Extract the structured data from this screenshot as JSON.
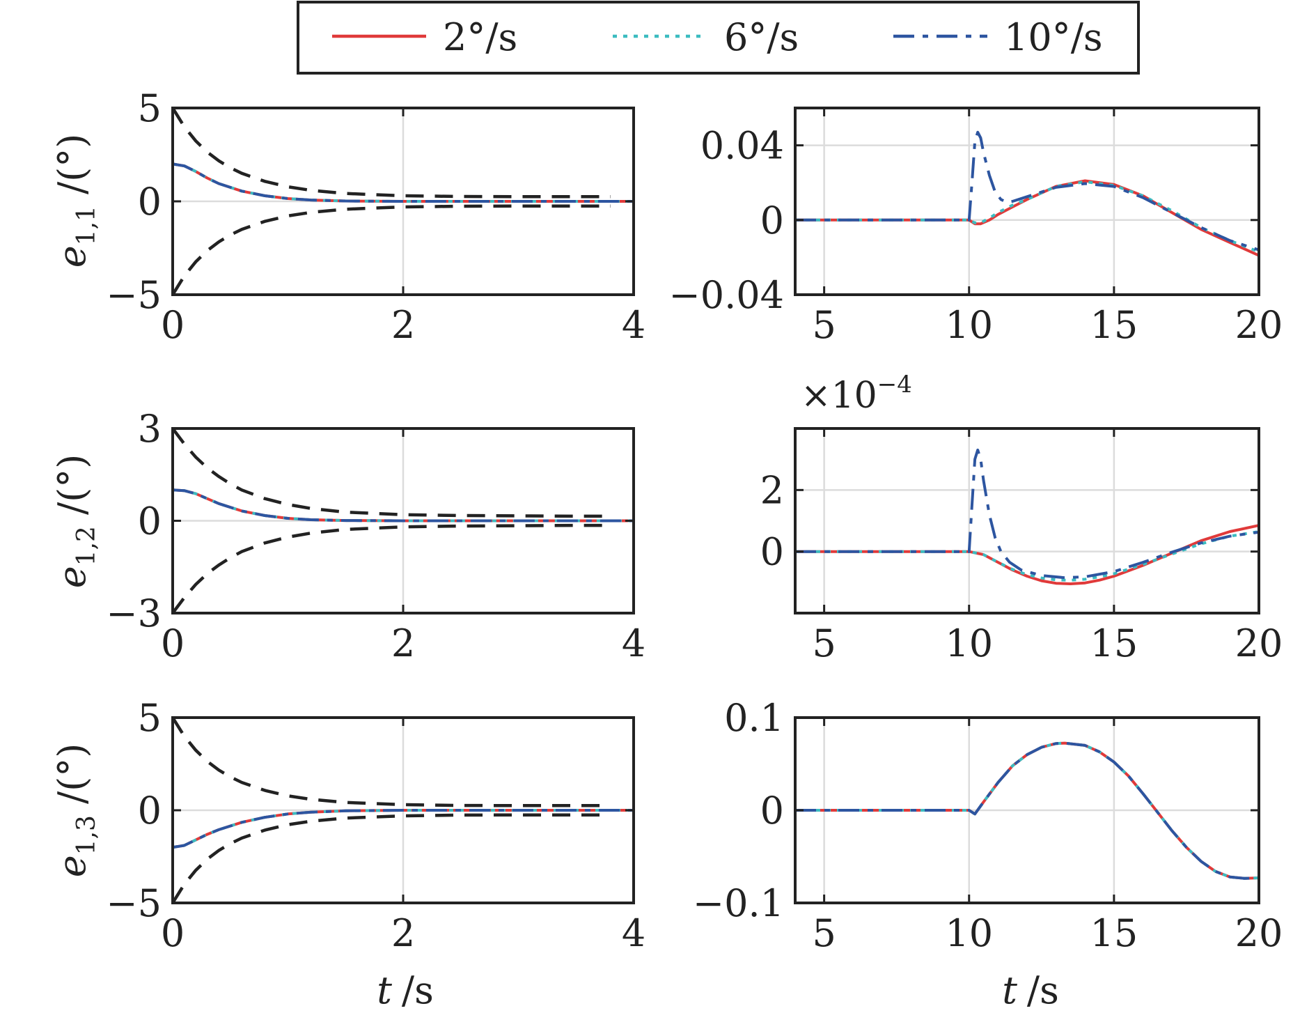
{
  "legend": {
    "placement": "top-center",
    "entries": [
      {
        "label": "2°/s",
        "color": "#e03a3a",
        "style": "solid"
      },
      {
        "label": "6°/s",
        "color": "#3cbcc0",
        "style": "dotted"
      },
      {
        "label": "10°/s",
        "color": "#2d55a0",
        "style": "dashdot"
      }
    ]
  },
  "colors": {
    "bound": "#222222",
    "grid": "#dcdcdc",
    "axes": "#222222"
  },
  "labels": {
    "ylabels": [
      {
        "base": "e",
        "sub": "1,1",
        "unit": "/(°)"
      },
      {
        "base": "e",
        "sub": "1,2",
        "unit": "/(°)"
      },
      {
        "base": "e",
        "sub": "1,3",
        "unit": "/(°)"
      }
    ],
    "xlabels": [
      {
        "var": "t",
        "unit": "/s"
      },
      {
        "var": "t",
        "unit": "/s"
      }
    ],
    "multiplier": {
      "base": "×10",
      "exp": "−4"
    }
  },
  "chart_data": [
    {
      "type": "line",
      "row": 1,
      "col": 1,
      "xlim": [
        0,
        4
      ],
      "ylim": [
        -5,
        5
      ],
      "xticks": [
        0,
        2,
        4
      ],
      "xtick_labels": [
        "0",
        "2",
        "4"
      ],
      "yticks": [
        -5,
        0,
        5
      ],
      "ytick_labels": [
        "−5",
        "0",
        "5"
      ],
      "grid": true,
      "series": [
        {
          "name": "2°/s",
          "x": [
            0,
            0.1,
            0.2,
            0.3,
            0.4,
            0.6,
            0.8,
            1.0,
            1.2,
            1.5,
            2.0,
            3.0,
            4.0
          ],
          "y": [
            2.0,
            1.9,
            1.6,
            1.25,
            0.95,
            0.55,
            0.3,
            0.15,
            0.07,
            0.02,
            0,
            0,
            0
          ]
        },
        {
          "name": "6°/s",
          "x": [
            0,
            0.1,
            0.2,
            0.3,
            0.4,
            0.6,
            0.8,
            1.0,
            1.2,
            1.5,
            2.0,
            3.0,
            4.0
          ],
          "y": [
            2.0,
            1.9,
            1.6,
            1.25,
            0.95,
            0.55,
            0.3,
            0.15,
            0.07,
            0.02,
            0,
            0,
            0
          ]
        },
        {
          "name": "10°/s",
          "x": [
            0,
            0.1,
            0.2,
            0.3,
            0.4,
            0.6,
            0.8,
            1.0,
            1.2,
            1.5,
            2.0,
            3.0,
            4.0
          ],
          "y": [
            2.0,
            1.9,
            1.6,
            1.25,
            0.95,
            0.55,
            0.3,
            0.15,
            0.07,
            0.02,
            0,
            0,
            0
          ]
        }
      ],
      "bounds": {
        "x": [
          0,
          0.1,
          0.2,
          0.3,
          0.4,
          0.5,
          0.6,
          0.8,
          1.0,
          1.2,
          1.5,
          2.0,
          2.5,
          3.0,
          3.5,
          3.8
        ],
        "upper": [
          5.0,
          4.0,
          3.24,
          2.64,
          2.17,
          1.8,
          1.5,
          1.07,
          0.78,
          0.59,
          0.42,
          0.3,
          0.26,
          0.25,
          0.25,
          0.25
        ]
      }
    },
    {
      "type": "line",
      "row": 1,
      "col": 2,
      "xlim": [
        4,
        20
      ],
      "ylim": [
        -0.04,
        0.06
      ],
      "xticks": [
        5,
        10,
        15,
        20
      ],
      "xtick_labels": [
        "5",
        "10",
        "15",
        "20"
      ],
      "yticks": [
        -0.04,
        0,
        0.04
      ],
      "ytick_labels": [
        "−0.04",
        "0",
        "0.04"
      ],
      "grid": true,
      "series": [
        {
          "name": "2°/s",
          "x": [
            4,
            10,
            10.2,
            10.4,
            10.7,
            11,
            11.5,
            12,
            13,
            14,
            15,
            16,
            17,
            18,
            19,
            20
          ],
          "y": [
            0,
            0,
            -0.002,
            -0.002,
            0.0,
            0.003,
            0.007,
            0.011,
            0.018,
            0.021,
            0.019,
            0.013,
            0.004,
            -0.005,
            -0.012,
            -0.019
          ]
        },
        {
          "name": "6°/s",
          "x": [
            4,
            10,
            10.2,
            10.4,
            10.7,
            11,
            11.5,
            12,
            13,
            14,
            15,
            16,
            17,
            18,
            19,
            20
          ],
          "y": [
            0,
            0,
            -0.0015,
            -0.0015,
            0.001,
            0.004,
            0.008,
            0.011,
            0.018,
            0.0205,
            0.0185,
            0.013,
            0.005,
            -0.004,
            -0.011,
            -0.017
          ]
        },
        {
          "name": "10°/s",
          "x": [
            4,
            10,
            10.1,
            10.2,
            10.3,
            10.4,
            10.5,
            10.7,
            10.9,
            11.1,
            11.3,
            11.5,
            12,
            13,
            14,
            15,
            16,
            17,
            18,
            19,
            20
          ],
          "y": [
            0,
            0,
            0.02,
            0.042,
            0.047,
            0.044,
            0.036,
            0.024,
            0.015,
            0.011,
            0.0095,
            0.01,
            0.0125,
            0.0175,
            0.0195,
            0.018,
            0.012,
            0.004,
            -0.004,
            -0.011,
            -0.016
          ]
        }
      ]
    },
    {
      "type": "line",
      "row": 2,
      "col": 1,
      "xlim": [
        0,
        4
      ],
      "ylim": [
        -3,
        3
      ],
      "xticks": [
        0,
        2,
        4
      ],
      "xtick_labels": [
        "0",
        "2",
        "4"
      ],
      "yticks": [
        -3,
        0,
        3
      ],
      "ytick_labels": [
        "−3",
        "0",
        "3"
      ],
      "grid": true,
      "series": [
        {
          "name": "2°/s",
          "x": [
            0,
            0.1,
            0.2,
            0.3,
            0.4,
            0.6,
            0.8,
            1.0,
            1.2,
            1.5,
            2.0,
            3.0,
            4.0
          ],
          "y": [
            1.0,
            0.98,
            0.88,
            0.72,
            0.56,
            0.32,
            0.17,
            0.08,
            0.035,
            0.01,
            0,
            0,
            0
          ]
        },
        {
          "name": "6°/s",
          "x": [
            0,
            0.1,
            0.2,
            0.3,
            0.4,
            0.6,
            0.8,
            1.0,
            1.2,
            1.5,
            2.0,
            3.0,
            4.0
          ],
          "y": [
            1.0,
            0.98,
            0.88,
            0.72,
            0.56,
            0.32,
            0.17,
            0.08,
            0.035,
            0.01,
            0,
            0,
            0
          ]
        },
        {
          "name": "10°/s",
          "x": [
            0,
            0.1,
            0.2,
            0.3,
            0.4,
            0.6,
            0.8,
            1.0,
            1.2,
            1.5,
            2.0,
            3.0,
            4.0
          ],
          "y": [
            1.0,
            0.98,
            0.88,
            0.72,
            0.56,
            0.32,
            0.17,
            0.08,
            0.035,
            0.01,
            0,
            0,
            0
          ]
        }
      ],
      "bounds": {
        "x": [
          0,
          0.1,
          0.2,
          0.3,
          0.4,
          0.5,
          0.6,
          0.8,
          1.0,
          1.2,
          1.5,
          2.0,
          2.5,
          3.0,
          3.5,
          3.8
        ],
        "upper": [
          3.0,
          2.5,
          2.07,
          1.72,
          1.44,
          1.2,
          1.0,
          0.72,
          0.53,
          0.4,
          0.28,
          0.2,
          0.17,
          0.16,
          0.15,
          0.15
        ]
      }
    },
    {
      "type": "line",
      "row": 2,
      "col": 2,
      "xlim": [
        4,
        20
      ],
      "ylim": [
        -2,
        4
      ],
      "y_multiplier": "×10⁻⁴",
      "xticks": [
        5,
        10,
        15,
        20
      ],
      "xtick_labels": [
        "5",
        "10",
        "15",
        "20"
      ],
      "yticks": [
        0,
        2
      ],
      "ytick_labels": [
        "0",
        "2"
      ],
      "grid": true,
      "series": [
        {
          "name": "2°/s",
          "x": [
            4,
            10,
            10.5,
            11,
            11.5,
            12,
            12.5,
            13,
            13.5,
            14,
            14.5,
            15,
            16,
            17,
            18,
            19,
            20
          ],
          "y": [
            0,
            0,
            -0.1,
            -0.35,
            -0.6,
            -0.8,
            -0.95,
            -1.03,
            -1.05,
            -1.02,
            -0.93,
            -0.8,
            -0.45,
            -0.05,
            0.35,
            0.65,
            0.85
          ]
        },
        {
          "name": "6°/s",
          "x": [
            4,
            10,
            10.5,
            11,
            11.5,
            12,
            12.5,
            13,
            13.5,
            14,
            14.5,
            15,
            16,
            17,
            18,
            19,
            20
          ],
          "y": [
            0,
            0,
            -0.1,
            -0.35,
            -0.58,
            -0.75,
            -0.86,
            -0.92,
            -0.93,
            -0.9,
            -0.82,
            -0.72,
            -0.42,
            -0.08,
            0.25,
            0.5,
            0.65
          ]
        },
        {
          "name": "10°/s",
          "x": [
            4,
            10,
            10.1,
            10.2,
            10.3,
            10.4,
            10.5,
            10.7,
            10.9,
            11.1,
            11.4,
            11.8,
            12.5,
            13.3,
            14,
            15,
            16,
            17,
            18,
            19,
            20
          ],
          "y": [
            0,
            0,
            1.5,
            3.0,
            3.3,
            3.0,
            2.3,
            1.2,
            0.45,
            0.0,
            -0.35,
            -0.6,
            -0.78,
            -0.85,
            -0.82,
            -0.65,
            -0.35,
            -0.02,
            0.28,
            0.5,
            0.63
          ]
        }
      ]
    },
    {
      "type": "line",
      "row": 3,
      "col": 1,
      "xlim": [
        0,
        4
      ],
      "ylim": [
        -5,
        5
      ],
      "xticks": [
        0,
        2,
        4
      ],
      "xtick_labels": [
        "0",
        "2",
        "4"
      ],
      "yticks": [
        -5,
        0,
        5
      ],
      "ytick_labels": [
        "−5",
        "0",
        "5"
      ],
      "grid": true,
      "series": [
        {
          "name": "2°/s",
          "x": [
            0,
            0.1,
            0.2,
            0.3,
            0.4,
            0.6,
            0.8,
            1.0,
            1.2,
            1.5,
            2.0,
            3.0,
            4.0
          ],
          "y": [
            -2.0,
            -1.9,
            -1.6,
            -1.3,
            -1.05,
            -0.65,
            -0.38,
            -0.2,
            -0.1,
            -0.03,
            0,
            0,
            0
          ]
        },
        {
          "name": "6°/s",
          "x": [
            0,
            0.1,
            0.2,
            0.3,
            0.4,
            0.6,
            0.8,
            1.0,
            1.2,
            1.5,
            2.0,
            3.0,
            4.0
          ],
          "y": [
            -2.0,
            -1.9,
            -1.6,
            -1.3,
            -1.05,
            -0.65,
            -0.38,
            -0.2,
            -0.1,
            -0.03,
            0,
            0,
            0
          ]
        },
        {
          "name": "10°/s",
          "x": [
            0,
            0.1,
            0.2,
            0.3,
            0.4,
            0.6,
            0.8,
            1.0,
            1.2,
            1.5,
            2.0,
            3.0,
            4.0
          ],
          "y": [
            -2.0,
            -1.9,
            -1.6,
            -1.3,
            -1.05,
            -0.65,
            -0.38,
            -0.2,
            -0.1,
            -0.03,
            0,
            0,
            0
          ]
        }
      ],
      "bounds": {
        "x": [
          0,
          0.1,
          0.2,
          0.3,
          0.4,
          0.5,
          0.6,
          0.8,
          1.0,
          1.2,
          1.5,
          2.0,
          2.5,
          3.0,
          3.5,
          3.8
        ],
        "upper": [
          5.0,
          4.0,
          3.24,
          2.64,
          2.17,
          1.8,
          1.5,
          1.07,
          0.78,
          0.59,
          0.42,
          0.3,
          0.26,
          0.25,
          0.25,
          0.25
        ]
      }
    },
    {
      "type": "line",
      "row": 3,
      "col": 2,
      "xlim": [
        4,
        20
      ],
      "ylim": [
        -0.1,
        0.1
      ],
      "xticks": [
        5,
        10,
        15,
        20
      ],
      "xtick_labels": [
        "5",
        "10",
        "15",
        "20"
      ],
      "yticks": [
        -0.1,
        0,
        0.1
      ],
      "ytick_labels": [
        "−0.1",
        "0",
        "0.1"
      ],
      "grid": true,
      "series": [
        {
          "name": "2°/s",
          "x": [
            4,
            10,
            10.2,
            10.5,
            11,
            11.5,
            12,
            12.5,
            13,
            13.3,
            14,
            14.5,
            15,
            15.5,
            16,
            16.5,
            17,
            17.5,
            18,
            18.5,
            19,
            19.5,
            20
          ],
          "y": [
            0,
            0,
            -0.004,
            0.009,
            0.03,
            0.048,
            0.06,
            0.068,
            0.072,
            0.0725,
            0.07,
            0.063,
            0.052,
            0.037,
            0.018,
            -0.002,
            -0.022,
            -0.04,
            -0.055,
            -0.066,
            -0.072,
            -0.0735,
            -0.073
          ]
        },
        {
          "name": "6°/s",
          "x": [
            4,
            10,
            10.2,
            10.5,
            11,
            11.5,
            12,
            12.5,
            13,
            13.3,
            14,
            14.5,
            15,
            15.5,
            16,
            16.5,
            17,
            17.5,
            18,
            18.5,
            19,
            19.5,
            20
          ],
          "y": [
            0,
            0,
            -0.004,
            0.009,
            0.03,
            0.048,
            0.06,
            0.068,
            0.072,
            0.0725,
            0.07,
            0.063,
            0.052,
            0.037,
            0.018,
            -0.002,
            -0.022,
            -0.04,
            -0.055,
            -0.066,
            -0.072,
            -0.0735,
            -0.073
          ]
        },
        {
          "name": "10°/s",
          "x": [
            4,
            10,
            10.2,
            10.5,
            11,
            11.5,
            12,
            12.5,
            13,
            13.3,
            14,
            14.5,
            15,
            15.5,
            16,
            16.5,
            17,
            17.5,
            18,
            18.5,
            19,
            19.5,
            20
          ],
          "y": [
            0,
            0,
            -0.004,
            0.009,
            0.03,
            0.048,
            0.06,
            0.068,
            0.072,
            0.0725,
            0.07,
            0.063,
            0.052,
            0.037,
            0.018,
            -0.002,
            -0.022,
            -0.04,
            -0.055,
            -0.066,
            -0.072,
            -0.0735,
            -0.073
          ]
        }
      ]
    }
  ]
}
